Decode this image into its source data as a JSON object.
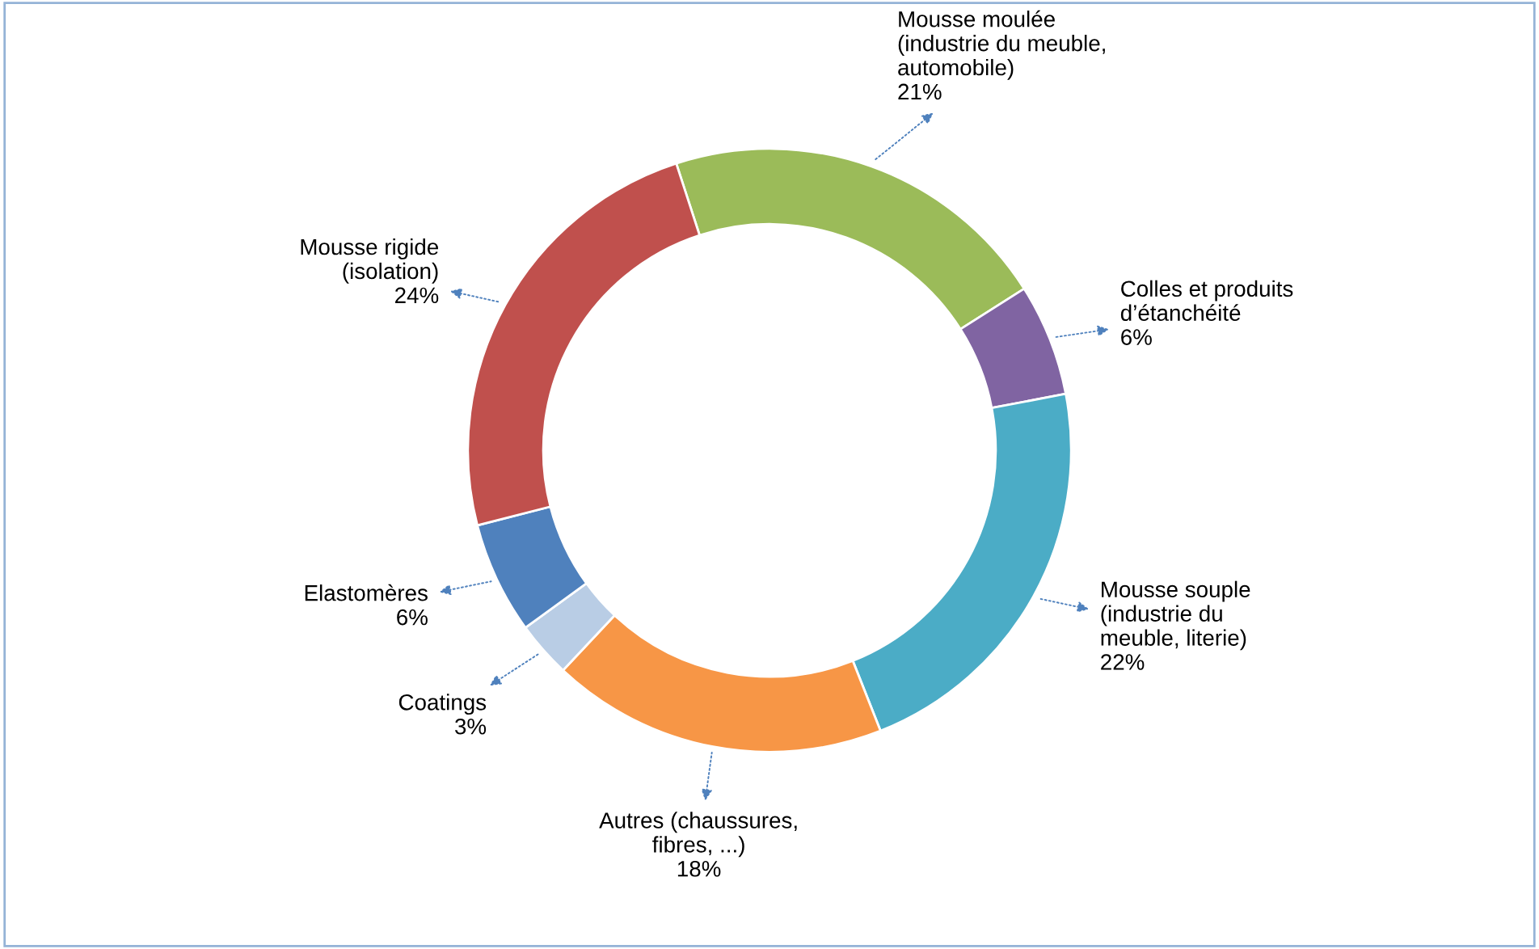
{
  "chart_data": {
    "type": "donut",
    "categories": [
      "Mousse moulée\n(industrie du meuble,\nautomobile)",
      "Colles et produits\nd’étanchéité",
      "Mousse souple\n(industrie du\nmeuble, literie)",
      "Autres (chaussures,\nfibres, ...)",
      "Coatings",
      "Elastomères",
      "Mousse rigide\n(isolation)"
    ],
    "values": [
      21,
      6,
      22,
      18,
      3,
      6,
      24
    ],
    "value_labels": [
      "21%",
      "6%",
      "22%",
      "18%",
      "3%",
      "6%",
      "24%"
    ],
    "colors": [
      "#9bbb59",
      "#8064a2",
      "#4bacc6",
      "#f79646",
      "#b9cde5",
      "#4f81bd",
      "#c0504d"
    ],
    "legend": false
  }
}
